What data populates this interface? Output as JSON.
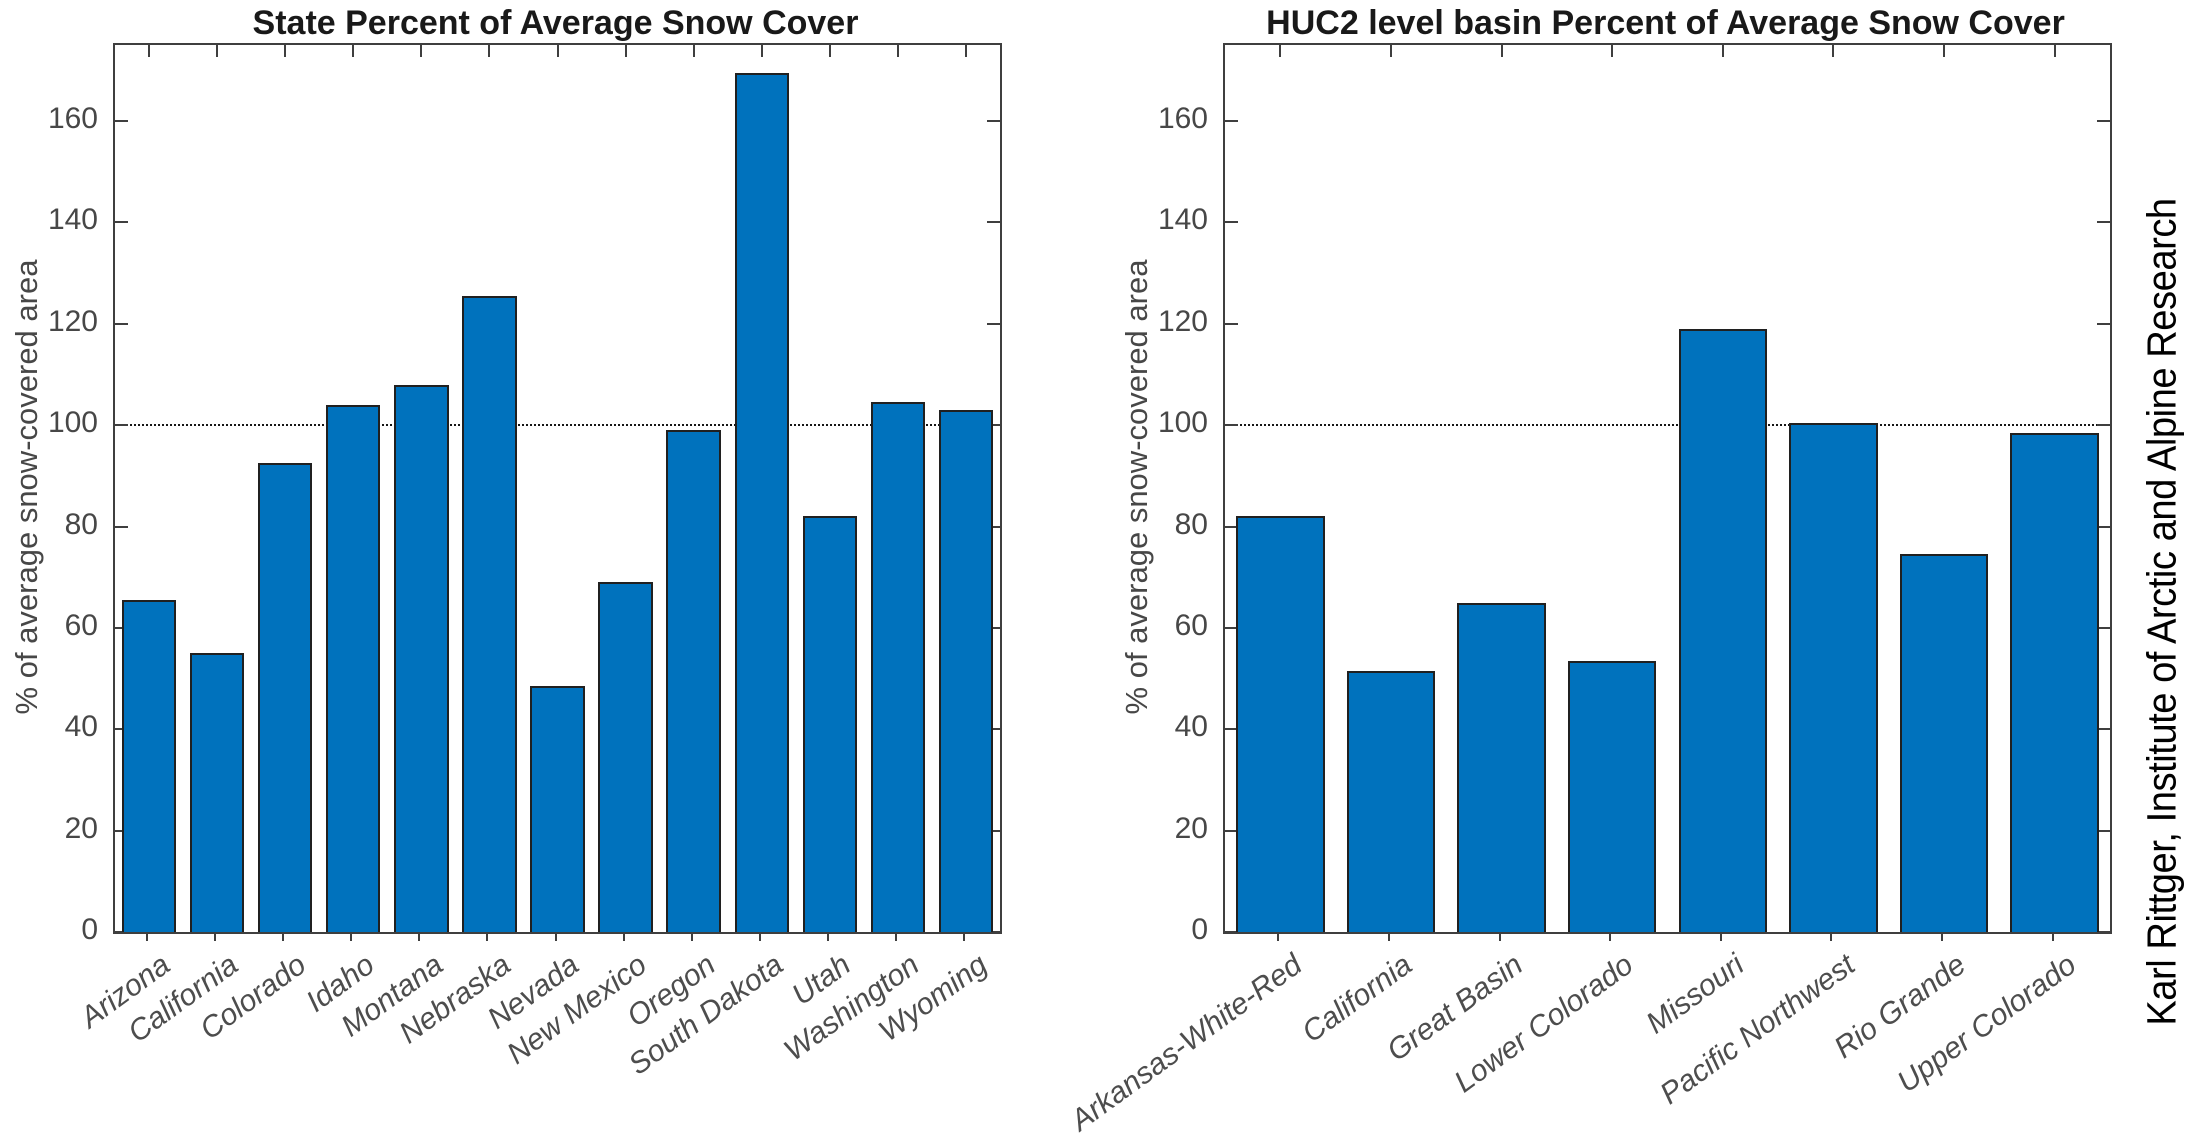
{
  "page": {
    "credit": "Karl Rittger, Institute of Arctic and Alpine Research"
  },
  "colors": {
    "bar_fill": "#0072BD",
    "bar_edge": "#202020",
    "axis": "#3f3f3f",
    "tick_label": "#474747",
    "x_tick_label": "#4d4d4d",
    "title": "#191919",
    "reference_line": "#161616",
    "credit_text": "#000000"
  },
  "chart_data": [
    {
      "type": "bar",
      "title": "State Percent of Average Snow Cover",
      "xlabel": "",
      "ylabel": "% of average snow-covered area",
      "ylim": [
        0,
        175
      ],
      "yticks": [
        0,
        20,
        40,
        60,
        80,
        100,
        120,
        140,
        160
      ],
      "reference_line": 100,
      "grid": false,
      "legend": "none",
      "categories": [
        "Arizona",
        "California",
        "Colorado",
        "Idaho",
        "Montana",
        "Nebraska",
        "Nevada",
        "New Mexico",
        "Oregon",
        "South Dakota",
        "Utah",
        "Washington",
        "Wyoming"
      ],
      "values": [
        65.5,
        55,
        92.5,
        104,
        108,
        125.5,
        48.5,
        69,
        99,
        169.5,
        82,
        104.5,
        103
      ]
    },
    {
      "type": "bar",
      "title": "HUC2 level basin Percent of Average Snow Cover",
      "xlabel": "",
      "ylabel": "% of average snow-covered area",
      "ylim": [
        0,
        175
      ],
      "yticks": [
        0,
        20,
        40,
        60,
        80,
        100,
        120,
        140,
        160
      ],
      "reference_line": 100,
      "grid": false,
      "legend": "none",
      "categories": [
        "Arkansas-White-Red",
        "California",
        "Great Basin",
        "Lower Colorado",
        "Missouri",
        "Pacific Northwest",
        "Rio Grande",
        "Upper Colorado"
      ],
      "values": [
        82,
        51.5,
        65,
        53.5,
        119,
        100.5,
        74.5,
        98.5
      ]
    }
  ]
}
